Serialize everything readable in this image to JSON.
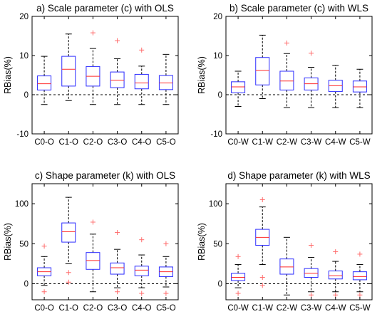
{
  "colors": {
    "box": "#2b2bff",
    "median": "#ff2a2a",
    "outlier": "#ff6b6b",
    "whisker": "#000000",
    "zero_line": "#000000",
    "frame": "#000000"
  },
  "chart_data": [
    {
      "type": "box",
      "title": "a) Scale parameter (c) with OLS",
      "ylabel": "RBias(%)",
      "ylim": [
        -10,
        20
      ],
      "yticks": [
        -10,
        0,
        10,
        20
      ],
      "zero_line": true,
      "categories": [
        "C0-O",
        "C1-O",
        "C2-O",
        "C3-O",
        "C4-O",
        "C5-O"
      ],
      "boxes": [
        {
          "whislo": -2.5,
          "q1": 1.2,
          "med": 2.8,
          "q3": 4.8,
          "whishi": 9.8,
          "outliers": []
        },
        {
          "whislo": -1.5,
          "q1": 2.2,
          "med": 6.5,
          "q3": 9.8,
          "whishi": 15.5,
          "outliers": []
        },
        {
          "whislo": -2.5,
          "q1": 2.2,
          "med": 4.7,
          "q3": 7.2,
          "whishi": 11.8,
          "outliers": [
            15.8
          ]
        },
        {
          "whislo": -2.5,
          "q1": 1.8,
          "med": 3.7,
          "q3": 5.8,
          "whishi": 9.2,
          "outliers": [
            13.8
          ]
        },
        {
          "whislo": -2.5,
          "q1": 1.5,
          "med": 3.0,
          "q3": 5.2,
          "whishi": 7.3,
          "outliers": [
            11.4
          ]
        },
        {
          "whislo": -2.5,
          "q1": 1.3,
          "med": 3.0,
          "q3": 4.9,
          "whishi": 10.3,
          "outliers": []
        }
      ]
    },
    {
      "type": "box",
      "title": "b) Scale parameter (c) with WLS",
      "ylabel": "RBias(%)",
      "ylim": [
        -10,
        20
      ],
      "yticks": [
        -10,
        0,
        10,
        20
      ],
      "zero_line": true,
      "categories": [
        "C0-W",
        "C1-W",
        "C2-W",
        "C3-W",
        "C4-W",
        "C5-W"
      ],
      "boxes": [
        {
          "whislo": -3.0,
          "q1": 0.5,
          "med": 2.0,
          "q3": 3.3,
          "whishi": 6.0,
          "outliers": []
        },
        {
          "whislo": -1.0,
          "q1": 2.5,
          "med": 6.2,
          "q3": 9.5,
          "whishi": 15.2,
          "outliers": []
        },
        {
          "whislo": -3.3,
          "q1": 1.2,
          "med": 3.5,
          "q3": 6.0,
          "whishi": 10.5,
          "outliers": [
            13.2
          ]
        },
        {
          "whislo": -3.3,
          "q1": 1.2,
          "med": 2.8,
          "q3": 4.3,
          "whishi": 7.0,
          "outliers": [
            10.6
          ]
        },
        {
          "whislo": -3.3,
          "q1": 0.8,
          "med": 2.3,
          "q3": 3.7,
          "whishi": 7.5,
          "outliers": []
        },
        {
          "whislo": -3.3,
          "q1": 0.7,
          "med": 2.0,
          "q3": 3.5,
          "whishi": 6.5,
          "outliers": []
        }
      ]
    },
    {
      "type": "box",
      "title": "c) Shape parameter (k) with OLS",
      "ylabel": "RBias(%)",
      "ylim": [
        -20,
        125
      ],
      "yticks": [
        0,
        50,
        100
      ],
      "zero_line": true,
      "categories": [
        "C0-O",
        "C1-O",
        "C2-O",
        "C3-O",
        "C4-O",
        "C5-O"
      ],
      "boxes": [
        {
          "whislo": -2,
          "q1": 10,
          "med": 15,
          "q3": 20,
          "whishi": 34,
          "outliers": [
            47,
            -10
          ]
        },
        {
          "whislo": 25,
          "q1": 52,
          "med": 65,
          "q3": 76,
          "whishi": 108,
          "outliers": [
            14,
            2
          ]
        },
        {
          "whislo": -10,
          "q1": 18,
          "med": 29,
          "q3": 39,
          "whishi": 62,
          "outliers": [
            77
          ]
        },
        {
          "whislo": -5,
          "q1": 12,
          "med": 20,
          "q3": 26,
          "whishi": 43,
          "outliers": [
            64,
            -10
          ]
        },
        {
          "whislo": -5,
          "q1": 10,
          "med": 17,
          "q3": 22,
          "whishi": 36,
          "outliers": [
            55,
            -12
          ]
        },
        {
          "whislo": -4,
          "q1": 9,
          "med": 15,
          "q3": 21,
          "whishi": 34,
          "outliers": [
            50,
            -12
          ]
        }
      ]
    },
    {
      "type": "box",
      "title": "d) Shape parameter (k) with WLS",
      "ylabel": "RBias(%)",
      "ylim": [
        -20,
        125
      ],
      "yticks": [
        0,
        50,
        100
      ],
      "zero_line": true,
      "categories": [
        "C0-W",
        "C1-W",
        "C2-W",
        "C3-W",
        "C4-W",
        "C5-W"
      ],
      "boxes": [
        {
          "whislo": -5,
          "q1": 4,
          "med": 8,
          "q3": 13,
          "whishi": 24,
          "outliers": [
            34,
            -12
          ]
        },
        {
          "whislo": 24,
          "q1": 48,
          "med": 58,
          "q3": 68,
          "whishi": 96,
          "outliers": [
            105,
            8,
            -2
          ]
        },
        {
          "whislo": -14,
          "q1": 12,
          "med": 21,
          "q3": 31,
          "whishi": 58,
          "outliers": []
        },
        {
          "whislo": -10,
          "q1": 8,
          "med": 13,
          "q3": 19,
          "whishi": 33,
          "outliers": [
            48,
            -14
          ]
        },
        {
          "whislo": -10,
          "q1": 6,
          "med": 10,
          "q3": 16,
          "whishi": 28,
          "outliers": [
            40,
            -14
          ]
        },
        {
          "whislo": -10,
          "q1": 5,
          "med": 9,
          "q3": 15,
          "whishi": 24,
          "outliers": [
            37,
            -14
          ]
        }
      ]
    }
  ]
}
